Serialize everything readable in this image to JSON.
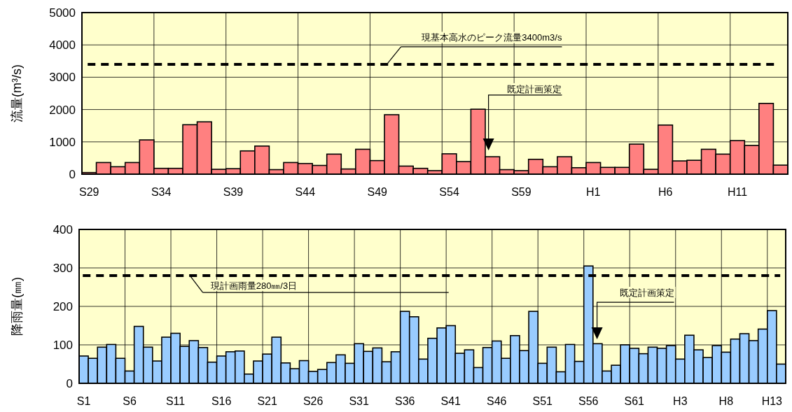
{
  "chart_data": [
    {
      "type": "bar",
      "ylabel": "流量(m³/s)",
      "categories": [
        "S29",
        null,
        null,
        null,
        null,
        "S34",
        null,
        null,
        null,
        null,
        "S39",
        null,
        null,
        null,
        null,
        "S44",
        null,
        null,
        null,
        null,
        "S49",
        null,
        null,
        null,
        null,
        "S54",
        null,
        null,
        null,
        null,
        "S59",
        null,
        null,
        null,
        null,
        "H1",
        null,
        null,
        null,
        null,
        "H6",
        null,
        null,
        null,
        null,
        "H11",
        null,
        null,
        null
      ],
      "values": [
        50,
        360,
        230,
        360,
        1060,
        180,
        180,
        1530,
        1620,
        150,
        170,
        720,
        870,
        140,
        360,
        330,
        270,
        620,
        160,
        770,
        420,
        1840,
        250,
        180,
        110,
        630,
        390,
        2010,
        540,
        140,
        110,
        460,
        230,
        540,
        200,
        360,
        210,
        210,
        930,
        150,
        1520,
        410,
        430,
        770,
        620,
        1040,
        890,
        2190,
        280
      ],
      "color": "#ff8080",
      "ylim": [
        0,
        5000
      ],
      "yticks": [
        0,
        1000,
        2000,
        3000,
        4000,
        5000
      ],
      "grid": true,
      "ref_lines": [
        {
          "axis": "y",
          "value": 3400,
          "label": "現基本高水のピーク流量3400m3/s",
          "color": "#000000",
          "line_style": "dashed"
        }
      ],
      "annotations": [
        "既定計画策定"
      ]
    },
    {
      "type": "bar",
      "ylabel": "降雨量(㎜)",
      "categories": [
        "S1",
        null,
        null,
        null,
        null,
        "S6",
        null,
        null,
        null,
        null,
        "S11",
        null,
        null,
        null,
        null,
        "S16",
        null,
        null,
        null,
        null,
        "S21",
        null,
        null,
        null,
        null,
        "S26",
        null,
        null,
        null,
        null,
        "S31",
        null,
        null,
        null,
        null,
        "S36",
        null,
        null,
        null,
        null,
        "S41",
        null,
        null,
        null,
        null,
        "S46",
        null,
        null,
        null,
        null,
        "S51",
        null,
        null,
        null,
        null,
        "S56",
        null,
        null,
        null,
        null,
        "S61",
        null,
        null,
        null,
        null,
        "H3",
        null,
        null,
        null,
        null,
        "H8",
        null,
        null,
        null,
        null,
        "H13",
        null
      ],
      "values": [
        71,
        65,
        94,
        101,
        65,
        32,
        148,
        94,
        58,
        120,
        130,
        96,
        111,
        93,
        55,
        71,
        82,
        84,
        24,
        58,
        76,
        120,
        53,
        38,
        59,
        31,
        36,
        54,
        74,
        52,
        103,
        83,
        92,
        56,
        82,
        187,
        173,
        63,
        117,
        144,
        150,
        78,
        87,
        41,
        93,
        110,
        65,
        124,
        85,
        187,
        52,
        94,
        30,
        101,
        57,
        305,
        103,
        32,
        47,
        100,
        91,
        77,
        94,
        91,
        98,
        63,
        125,
        87,
        67,
        98,
        81,
        115,
        129,
        111,
        141,
        189,
        50
      ],
      "color": "#99ccff",
      "ylim": [
        0,
        400
      ],
      "yticks": [
        0,
        100,
        200,
        300,
        400
      ],
      "grid": true,
      "ref_lines": [
        {
          "axis": "y",
          "value": 280,
          "label": "現計画雨量280㎜/3日",
          "color": "#000000",
          "line_style": "dashed"
        }
      ],
      "annotations": [
        "既定計画策定"
      ]
    }
  ]
}
